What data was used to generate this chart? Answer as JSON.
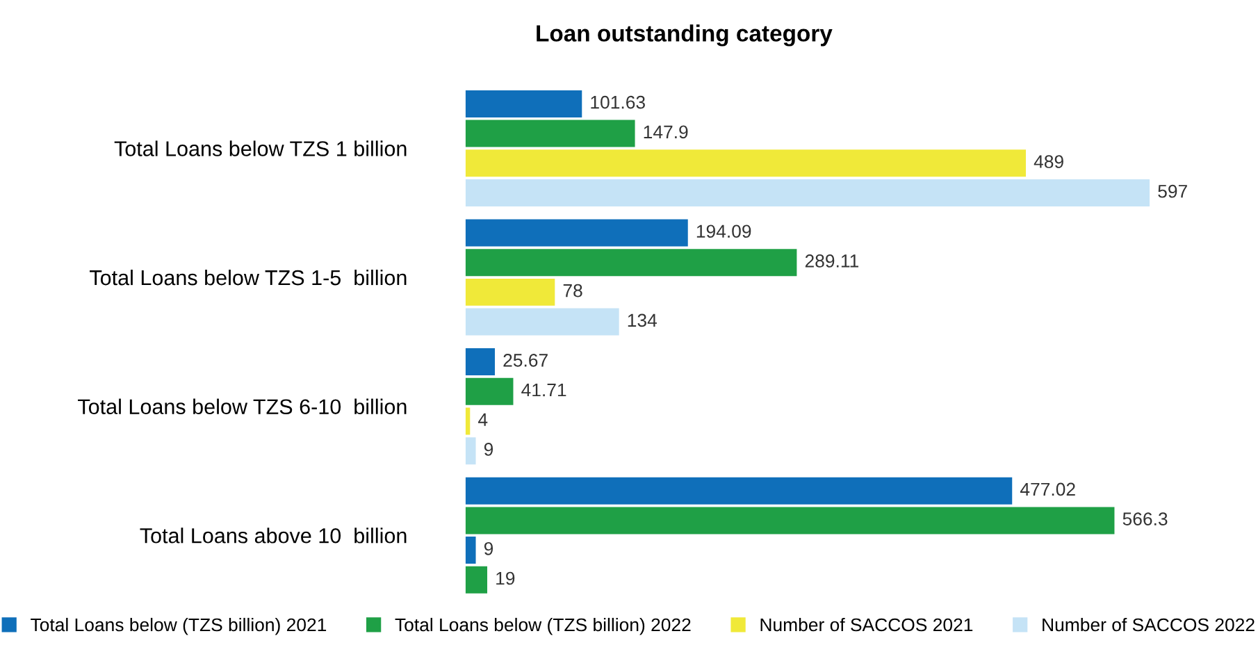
{
  "chart_data": {
    "type": "bar",
    "orientation": "horizontal",
    "title": "Loan outstanding category",
    "categories": [
      "Total Loans below TZS 1 billion",
      "Total Loans below TZS 1-5  billion",
      "Total Loans below TZS 6-10  billion",
      "Total Loans above 10  billion"
    ],
    "series": [
      {
        "name": "Total Loans below (TZS billion) 2021",
        "color": "#0f6fba",
        "values": [
          101.63,
          194.09,
          25.67,
          477.02
        ]
      },
      {
        "name": "Total Loans below (TZS billion) 2022",
        "color": "#1fa046",
        "values": [
          147.9,
          289.11,
          41.71,
          566.3
        ]
      },
      {
        "name": "Number of SACCOS 2021",
        "color": "#f0e939",
        "colors": [
          "#f0e939",
          "#f0e939",
          "#f0e939",
          "#0f6fba"
        ],
        "values": [
          489,
          78,
          4,
          9
        ]
      },
      {
        "name": "Number of SACCOS 2022",
        "color": "#c5e3f6",
        "colors": [
          "#c5e3f6",
          "#c5e3f6",
          "#c5e3f6",
          "#1fa046"
        ],
        "values": [
          597,
          134,
          9,
          19
        ]
      }
    ],
    "tick_labels": "y",
    "data_labels": true,
    "grid": false,
    "legend": "bottom"
  }
}
